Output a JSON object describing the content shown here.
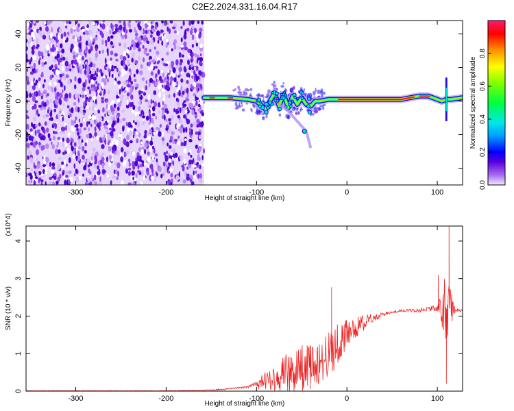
{
  "title": "C2E2.2024.331.16.04.R17",
  "chart_data": [
    {
      "type": "heatmap",
      "name": "spectrogram",
      "xlabel": "Height of straight line (km)",
      "ylabel": "Frequency (Hz)",
      "xlim": [
        -355,
        128
      ],
      "ylim": [
        -50,
        48
      ],
      "xticks": [
        -300,
        -200,
        -100,
        0,
        100
      ],
      "yticks": [
        -40,
        -20,
        0,
        20,
        40
      ],
      "noise_region_x": [
        -355,
        -158
      ],
      "ridge": {
        "x": [
          -158,
          -150,
          -140,
          -130,
          -120,
          -110,
          -100,
          -90,
          -80,
          -75,
          -70,
          -65,
          -60,
          -55,
          -50,
          -45,
          -40,
          -35,
          -30,
          -20,
          -10,
          0,
          20,
          40,
          60,
          80,
          90,
          100,
          105,
          110,
          115,
          128
        ],
        "freq": [
          2,
          2,
          2,
          2,
          1.5,
          1,
          0,
          -5,
          5,
          -3,
          4,
          -4,
          3,
          -2,
          2,
          -2,
          -3,
          0,
          0,
          1,
          1,
          1,
          1,
          1,
          1,
          3,
          3,
          1,
          0,
          1,
          1,
          2
        ]
      },
      "branch": {
        "x": [
          -75,
          -65,
          -55,
          -45,
          -40
        ],
        "freq": [
          -2,
          -6,
          -12,
          -18,
          -28
        ]
      },
      "colorbar": {
        "label": "Normalized spectral amplitude",
        "ticks": [
          0.0,
          0.2,
          0.4,
          0.6,
          0.8
        ],
        "tick_labels": [
          "0.0",
          "0.2",
          "0.4",
          "0.6",
          "0.8"
        ],
        "range": [
          0,
          1
        ]
      }
    },
    {
      "type": "line",
      "name": "snr",
      "xlabel": "Height of straight line (km)",
      "ylabel": "SNR (10 * v/v)",
      "scale_note": "(x10^4)",
      "xlim": [
        -355,
        128
      ],
      "ylim": [
        0,
        4.4
      ],
      "xticks": [
        -300,
        -200,
        -100,
        0,
        100
      ],
      "yticks": [
        0,
        1,
        2,
        3,
        4
      ],
      "color": "#ee2222",
      "envelope_x": [
        -355,
        -200,
        -160,
        -130,
        -110,
        -100,
        -90,
        -80,
        -70,
        -60,
        -50,
        -40,
        -30,
        -20,
        -10,
        0,
        10,
        20,
        30,
        40,
        50,
        60,
        70,
        80,
        90,
        100,
        105,
        110,
        115,
        120,
        128
      ],
      "envelope_mean": [
        0.01,
        0.01,
        0.02,
        0.05,
        0.08,
        0.15,
        0.3,
        0.35,
        0.45,
        0.5,
        0.6,
        0.65,
        0.75,
        0.95,
        1.3,
        1.5,
        1.7,
        1.85,
        1.95,
        2.05,
        2.1,
        2.15,
        2.15,
        2.15,
        2.2,
        2.2,
        2.2,
        2.2,
        2.2,
        2.15,
        2.15
      ],
      "envelope_noise": [
        0.003,
        0.004,
        0.008,
        0.03,
        0.05,
        0.1,
        0.25,
        0.35,
        0.5,
        0.6,
        0.65,
        0.6,
        0.6,
        0.7,
        0.6,
        0.4,
        0.3,
        0.2,
        0.1,
        0.05,
        0.03,
        0.03,
        0.04,
        0.05,
        0.06,
        0.1,
        0.5,
        1.0,
        0.5,
        0.05,
        0.03
      ],
      "spikes": [
        {
          "x": -17,
          "y": 2.77
        },
        {
          "x": 101,
          "y": 3.1
        },
        {
          "x": 110,
          "y": 0.2
        },
        {
          "x": 113,
          "y": 4.4
        }
      ]
    }
  ]
}
